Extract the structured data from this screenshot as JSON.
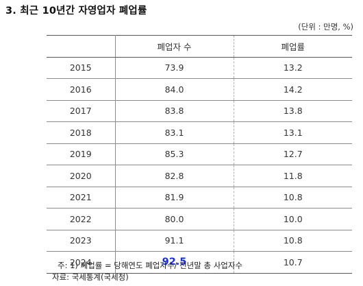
{
  "title": "3. 최근 10년간 자영업자 폐업률",
  "unit": "(단위 : 만명, %)",
  "table": {
    "headers": [
      "",
      "폐업자 수",
      "폐업률"
    ],
    "rows": [
      {
        "year": "2015",
        "count": "73.9",
        "rate": "13.2"
      },
      {
        "year": "2016",
        "count": "84.0",
        "rate": "14.2"
      },
      {
        "year": "2017",
        "count": "83.8",
        "rate": "13.8"
      },
      {
        "year": "2018",
        "count": "83.1",
        "rate": "13.1"
      },
      {
        "year": "2019",
        "count": "85.3",
        "rate": "12.7"
      },
      {
        "year": "2020",
        "count": "82.8",
        "rate": "11.8"
      },
      {
        "year": "2021",
        "count": "81.9",
        "rate": "10.8"
      },
      {
        "year": "2022",
        "count": "80.0",
        "rate": "10.0"
      },
      {
        "year": "2023",
        "count": "91.1",
        "rate": "10.8"
      },
      {
        "year": "2024",
        "count": "92.5",
        "rate": "10.7"
      }
    ]
  },
  "highlight_color": "#1a2fd6",
  "note": "주: 1) 폐업률 = 당해연도 폐업자수/ 전년말 총 사업자수",
  "source": "자료: 국세통계(국세청)"
}
